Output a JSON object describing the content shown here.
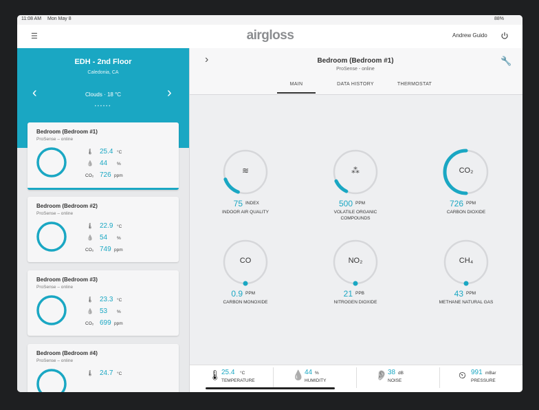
{
  "status_bar": {
    "time": "11:08 AM",
    "date": "Mon May 8",
    "battery": "88%"
  },
  "header": {
    "logo": "airgloss",
    "user": "Andrew Guido"
  },
  "location": {
    "name": "EDH - 2nd Floor",
    "city": "Caledonia, CA",
    "weather": "Clouds · 18 °C"
  },
  "rooms": [
    {
      "name": "Bedroom (Bedroom #1)",
      "status": "ProSense – online",
      "temperature": 25.4,
      "temperature_unit": "°C",
      "humidity": 44,
      "humidity_unit": "%",
      "co2_label": "CO₂",
      "co2": 726,
      "co2_unit": "ppm"
    },
    {
      "name": "Bedroom (Bedroom #2)",
      "status": "ProSense – online",
      "temperature": 22.9,
      "temperature_unit": "°C",
      "humidity": 54,
      "humidity_unit": "%",
      "co2_label": "CO₂",
      "co2": 749,
      "co2_unit": "ppm"
    },
    {
      "name": "Bedroom (Bedroom #3)",
      "status": "ProSense – online",
      "temperature": 23.3,
      "temperature_unit": "°C",
      "humidity": 53,
      "humidity_unit": "%",
      "co2_label": "CO₂",
      "co2": 699,
      "co2_unit": "ppm"
    },
    {
      "name": "Bedroom (Bedroom #4)",
      "status": "ProSense – online",
      "temperature": 24.7,
      "temperature_unit": "°C"
    }
  ],
  "detail": {
    "title": "Bedroom (Bedroom #1)",
    "status": "ProSense - online",
    "tabs": [
      "MAIN",
      "DATA HISTORY",
      "THERMOSTAT"
    ],
    "gauges": [
      {
        "value": 75,
        "unit": "INDEX",
        "label": "INDOOR AIR QUALITY"
      },
      {
        "value": 500,
        "unit": "PPM",
        "label": "VOLATILE ORGANIC COMPOUNDS"
      },
      {
        "symbol": "CO₂",
        "value": 726,
        "unit": "PPM",
        "label": "CARBON DIOXIDE"
      },
      {
        "symbol": "CO",
        "value": 0.9,
        "unit": "PPM",
        "label": "CARBON MONOXIDE"
      },
      {
        "symbol": "NO₂",
        "value": 21,
        "unit": "PPB",
        "label": "NITROGEN DIOXIDE"
      },
      {
        "symbol": "CH₄",
        "value": 43,
        "unit": "PPM",
        "label": "METHANE NATURAL GAS"
      }
    ]
  },
  "footer": [
    {
      "value": 25.4,
      "unit": "°C",
      "label": "TEMPERATURE"
    },
    {
      "value": 44,
      "unit": "%",
      "label": "HUMIDITY"
    },
    {
      "value": 38,
      "unit": "dB",
      "label": "NOISE"
    },
    {
      "value": 991,
      "unit": "mBar",
      "label": "PRESSURE"
    }
  ]
}
